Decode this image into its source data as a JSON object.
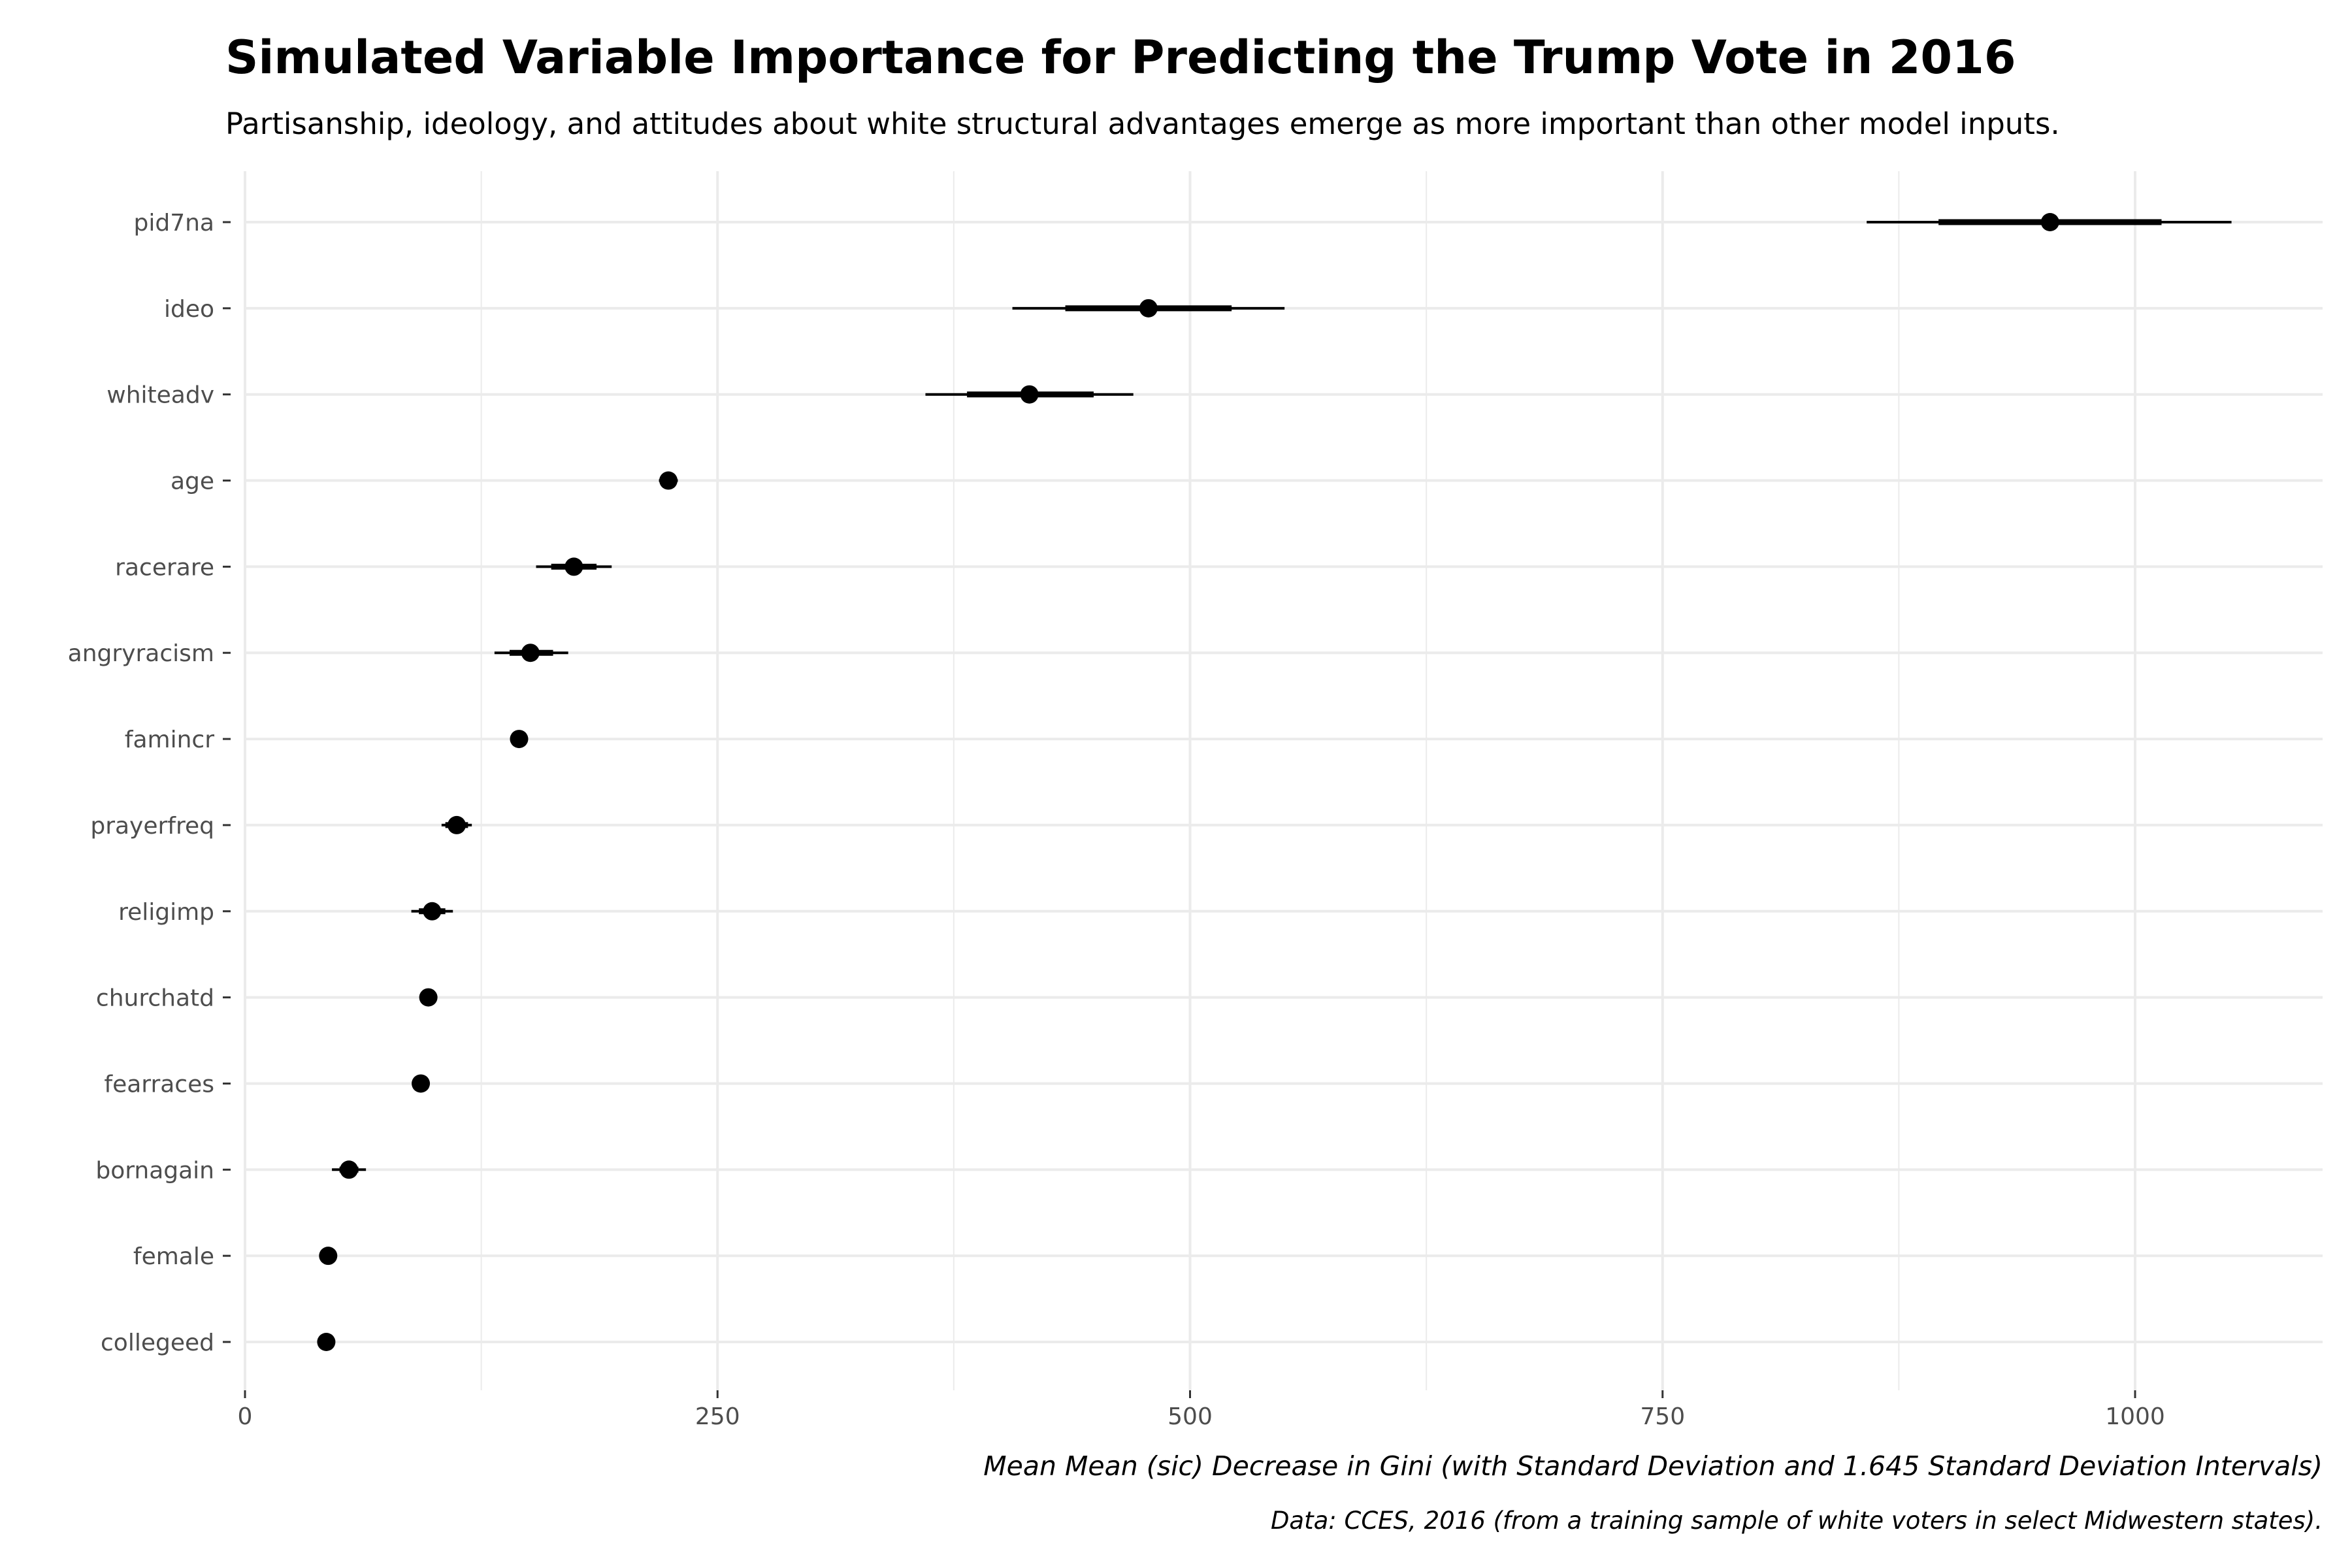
{
  "chart_data": {
    "type": "scatter",
    "title": "Simulated Variable Importance for Predicting the Trump Vote in 2016",
    "subtitle": "Partisanship, ideology, and attitudes about white structural advantages emerge as more important than other model inputs.",
    "xlabel": "Mean Mean (sic) Decrease in Gini (with Standard Deviation and 1.645 Standard Deviation Intervals)",
    "ylabel": "",
    "caption": "Data: CCES, 2016 (from a training sample of white voters in select Midwestern states).",
    "xlim": [
      0,
      1100
    ],
    "x_ticks": [
      0,
      250,
      500,
      750,
      1000
    ],
    "x_tick_labels": [
      "0",
      "250",
      "500",
      "750",
      "1000"
    ],
    "grid": true,
    "legend": "none",
    "point_color": "#000000",
    "gridline_color": "#ebebeb",
    "points": [
      {
        "variable": "pid7na",
        "mean": 955,
        "sd_low": 896,
        "sd_high": 1014,
        "ci_low": 858,
        "ci_high": 1051
      },
      {
        "variable": "ideo",
        "mean": 478,
        "sd_low": 434,
        "sd_high": 522,
        "ci_low": 406,
        "ci_high": 550
      },
      {
        "variable": "whiteadv",
        "mean": 415,
        "sd_low": 382,
        "sd_high": 449,
        "ci_low": 360,
        "ci_high": 470
      },
      {
        "variable": "age",
        "mean": 224,
        "sd_low": 221,
        "sd_high": 227,
        "ci_low": 219,
        "ci_high": 229
      },
      {
        "variable": "racerare",
        "mean": 174,
        "sd_low": 162,
        "sd_high": 186,
        "ci_low": 154,
        "ci_high": 194
      },
      {
        "variable": "angryracism",
        "mean": 151,
        "sd_low": 140,
        "sd_high": 163,
        "ci_low": 132,
        "ci_high": 171
      },
      {
        "variable": "famincr",
        "mean": 145,
        "sd_low": 143,
        "sd_high": 147,
        "ci_low": 142,
        "ci_high": 148
      },
      {
        "variable": "prayerfreq",
        "mean": 112,
        "sd_low": 106,
        "sd_high": 118,
        "ci_low": 104,
        "ci_high": 120
      },
      {
        "variable": "religimp",
        "mean": 99,
        "sd_low": 92,
        "sd_high": 106,
        "ci_low": 88,
        "ci_high": 110
      },
      {
        "variable": "churchatd",
        "mean": 97,
        "sd_low": 96,
        "sd_high": 98,
        "ci_low": 95,
        "ci_high": 99
      },
      {
        "variable": "fearraces",
        "mean": 93,
        "sd_low": 92,
        "sd_high": 94,
        "ci_low": 91,
        "ci_high": 95
      },
      {
        "variable": "bornagain",
        "mean": 55,
        "sd_low": 50,
        "sd_high": 60,
        "ci_low": 46,
        "ci_high": 64
      },
      {
        "variable": "female",
        "mean": 44,
        "sd_low": 43,
        "sd_high": 45,
        "ci_low": 42,
        "ci_high": 46
      },
      {
        "variable": "collegeed",
        "mean": 43,
        "sd_low": 42,
        "sd_high": 44,
        "ci_low": 41,
        "ci_high": 45
      }
    ]
  }
}
